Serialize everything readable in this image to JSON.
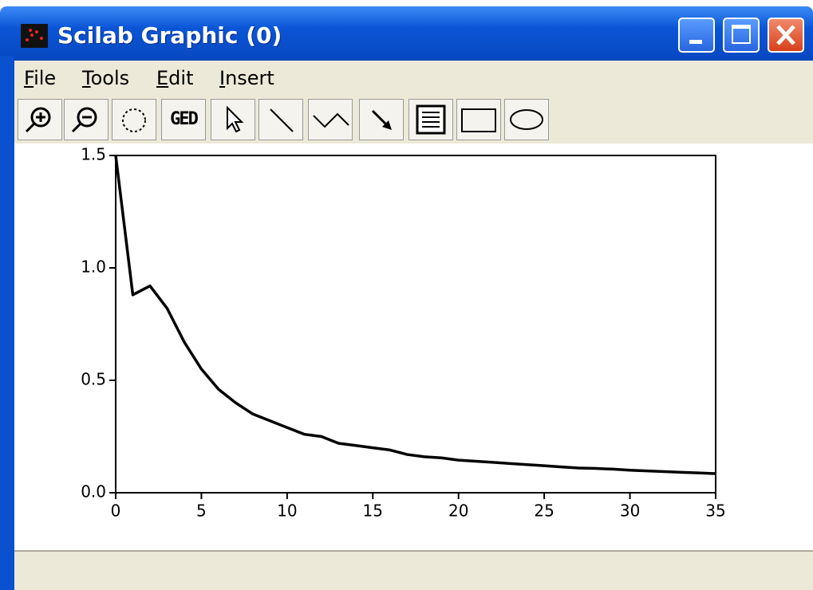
{
  "window": {
    "title": "Scilab Graphic (0)"
  },
  "menu": [
    "File",
    "Tools",
    "Edit",
    "Insert"
  ],
  "toolbar": {
    "ged_label": "GED"
  },
  "chart_data": {
    "type": "line",
    "x": [
      0,
      1,
      2,
      3,
      4,
      5,
      6,
      7,
      8,
      9,
      10,
      11,
      12,
      13,
      14,
      15,
      16,
      17,
      18,
      19,
      20,
      21,
      22,
      23,
      24,
      25,
      26,
      27,
      28,
      29,
      30,
      31,
      32,
      33,
      34,
      35
    ],
    "series": [
      {
        "color": "#000000",
        "values": [
          1.5,
          0.88,
          0.92,
          0.82,
          0.67,
          0.55,
          0.46,
          0.4,
          0.35,
          0.32,
          0.29,
          0.26,
          0.25,
          0.22,
          0.21,
          0.2,
          0.19,
          0.17,
          0.16,
          0.155,
          0.145,
          0.14,
          0.135,
          0.13,
          0.125,
          0.12,
          0.115,
          0.11,
          0.108,
          0.105,
          0.1,
          0.097,
          0.094,
          0.091,
          0.088,
          0.085
        ]
      }
    ],
    "xlim": [
      0,
      35
    ],
    "ylim": [
      0,
      1.5
    ],
    "xticks": [
      0,
      5,
      10,
      15,
      20,
      25,
      30,
      35
    ],
    "yticks": [
      {
        "value": 0,
        "label": "0.0"
      },
      0.5,
      {
        "value": 1,
        "label": "1.0"
      },
      1.5
    ]
  }
}
